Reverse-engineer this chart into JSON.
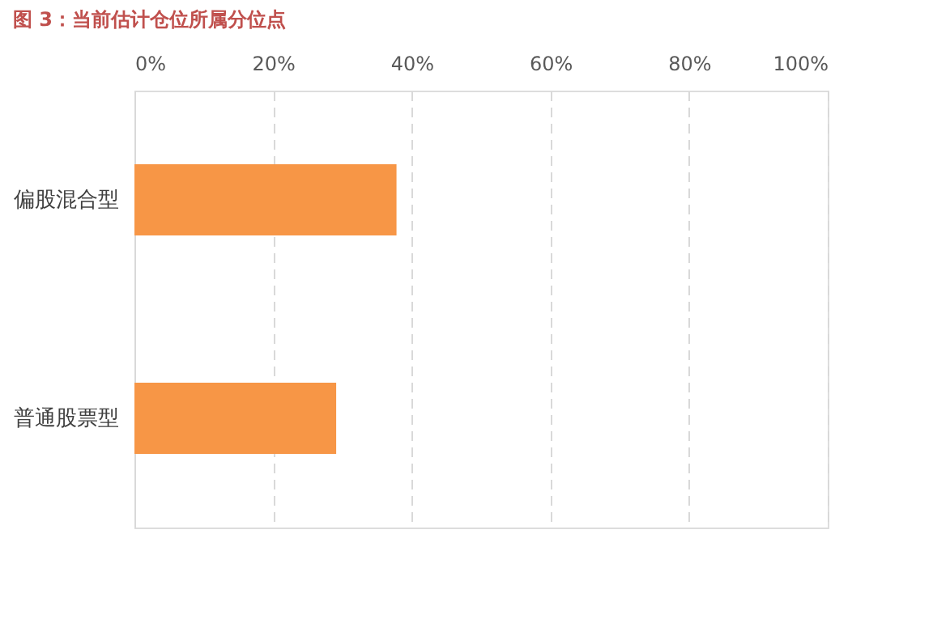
{
  "chart_data": {
    "type": "bar",
    "orientation": "horizontal",
    "title": "图 3：当前估计仓位所属分位点",
    "categories": [
      "偏股混合型",
      "普通股票型"
    ],
    "values": [
      37.8,
      29.1
    ],
    "color": "#f79646",
    "xlim": [
      0,
      100
    ],
    "xticks": [
      {
        "value": 0,
        "label": "0%"
      },
      {
        "value": 20,
        "label": "20%"
      },
      {
        "value": 40,
        "label": "40%"
      },
      {
        "value": 60,
        "label": "60%"
      },
      {
        "value": 80,
        "label": "80%"
      },
      {
        "value": 100,
        "label": "100%"
      }
    ],
    "grid": "x"
  }
}
